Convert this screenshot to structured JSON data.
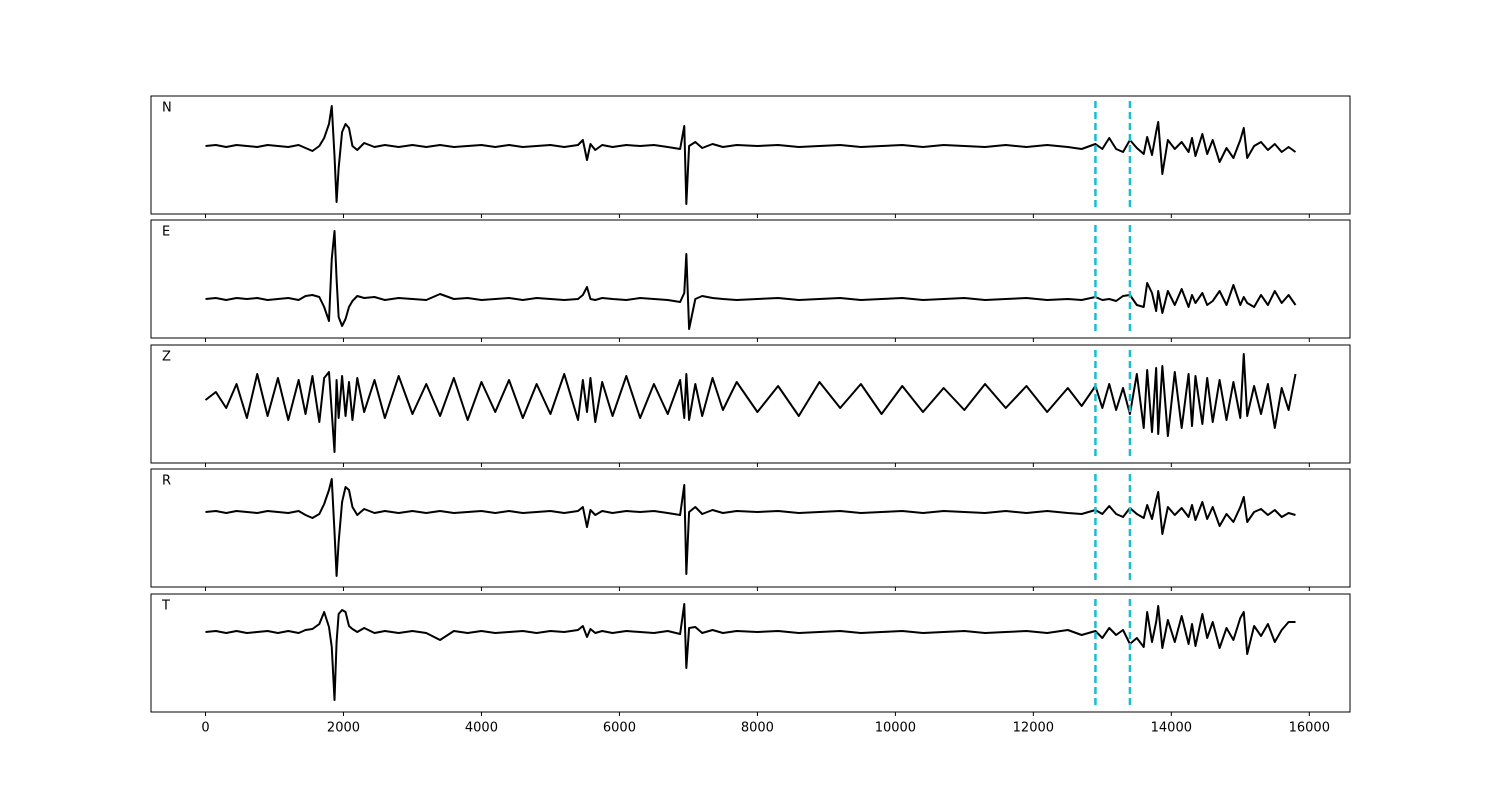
{
  "chart_data": {
    "type": "line",
    "xlim": [
      -790,
      16590
    ],
    "xticks": [
      0,
      2000,
      4000,
      6000,
      8000,
      10000,
      12000,
      14000,
      16000
    ],
    "line_color": "#000000",
    "vlines": {
      "x": [
        12900,
        13400
      ],
      "color": "#17becf"
    },
    "x": [
      0,
      150,
      300,
      450,
      600,
      750,
      900,
      1050,
      1200,
      1350,
      1450,
      1550,
      1650,
      1720,
      1790,
      1830,
      1870,
      1900,
      1930,
      1980,
      2030,
      2080,
      2130,
      2200,
      2300,
      2450,
      2600,
      2800,
      3000,
      3200,
      3400,
      3600,
      3800,
      4000,
      4200,
      4400,
      4600,
      4800,
      5000,
      5200,
      5400,
      5470,
      5530,
      5580,
      5650,
      5750,
      5900,
      6100,
      6300,
      6500,
      6700,
      6880,
      6940,
      6970,
      7010,
      7100,
      7200,
      7350,
      7500,
      7700,
      8000,
      8300,
      8600,
      8900,
      9200,
      9500,
      9800,
      10100,
      10400,
      10700,
      11000,
      11300,
      11600,
      11900,
      12200,
      12500,
      12700,
      12900,
      13000,
      13100,
      13200,
      13300,
      13400,
      13500,
      13600,
      13650,
      13720,
      13780,
      13810,
      13870,
      13950,
      14050,
      14150,
      14250,
      14300,
      14350,
      14450,
      14520,
      14600,
      14700,
      14800,
      14900,
      15000,
      15050,
      15100,
      15200,
      15300,
      15400,
      15500,
      15600,
      15700,
      15800
    ],
    "series": [
      {
        "name": "N",
        "ylim": [
          -68,
          50
        ],
        "values": [
          0,
          1,
          -1,
          1,
          0,
          -1,
          1,
          0,
          -1,
          1,
          -2,
          -5,
          0,
          8,
          22,
          40,
          -10,
          -56,
          -22,
          14,
          22,
          18,
          0,
          -4,
          3,
          -1,
          1,
          -1,
          1,
          -1,
          1,
          -1,
          0,
          1,
          -1,
          1,
          -1,
          0,
          1,
          -1,
          1,
          6,
          -14,
          2,
          -4,
          1,
          -1,
          1,
          0,
          1,
          -1,
          -3,
          20,
          -58,
          0,
          4,
          -2,
          2,
          -1,
          1,
          0,
          1,
          -1,
          0,
          1,
          -1,
          0,
          1,
          -1,
          1,
          0,
          -1,
          1,
          -1,
          1,
          -1,
          -3,
          2,
          -3,
          8,
          -3,
          -6,
          6,
          -2,
          -8,
          9,
          -9,
          14,
          24,
          -28,
          6,
          -3,
          4,
          -6,
          8,
          -10,
          12,
          -8,
          6,
          -16,
          -2,
          -12,
          6,
          18,
          -12,
          0,
          4,
          -4,
          2,
          -6,
          -1,
          -6
        ]
      },
      {
        "name": "E",
        "ylim": [
          -39,
          79
        ],
        "values": [
          0,
          1,
          -1,
          1,
          0,
          1,
          -1,
          0,
          1,
          -1,
          3,
          4,
          2,
          -8,
          -22,
          40,
          68,
          20,
          -18,
          -27,
          -20,
          -8,
          -2,
          3,
          1,
          2,
          -1,
          1,
          0,
          -1,
          5,
          0,
          1,
          -1,
          0,
          1,
          -1,
          1,
          0,
          -1,
          0,
          4,
          12,
          0,
          -1,
          1,
          0,
          -1,
          1,
          0,
          -1,
          -3,
          6,
          45,
          -30,
          0,
          3,
          1,
          0,
          -1,
          0,
          1,
          -1,
          0,
          1,
          -1,
          0,
          1,
          -1,
          0,
          1,
          -1,
          0,
          1,
          -1,
          0,
          -1,
          2,
          -1,
          0,
          -2,
          3,
          4,
          -6,
          -8,
          16,
          6,
          -12,
          8,
          -14,
          8,
          -6,
          10,
          -8,
          4,
          -4,
          6,
          -6,
          -2,
          8,
          -6,
          14,
          -6,
          2,
          -4,
          -8,
          4,
          -6,
          8,
          -4,
          4,
          -6
        ]
      },
      {
        "name": "Z",
        "ylim": [
          -65,
          53
        ],
        "values": [
          -2,
          6,
          -10,
          14,
          -20,
          24,
          -18,
          20,
          -22,
          18,
          -16,
          22,
          -24,
          20,
          26,
          -14,
          -54,
          18,
          -20,
          22,
          -18,
          16,
          -22,
          20,
          -14,
          18,
          -20,
          22,
          -16,
          14,
          -18,
          20,
          -22,
          16,
          -14,
          18,
          -20,
          14,
          -16,
          24,
          -22,
          18,
          -14,
          20,
          -24,
          16,
          -18,
          22,
          -20,
          14,
          -16,
          18,
          -20,
          24,
          -22,
          14,
          -18,
          20,
          -12,
          16,
          -14,
          12,
          -18,
          16,
          -10,
          14,
          -16,
          12,
          -14,
          10,
          -12,
          14,
          -10,
          12,
          -14,
          10,
          -8,
          12,
          -10,
          14,
          -12,
          10,
          -16,
          24,
          -30,
          28,
          -34,
          30,
          -36,
          32,
          -38,
          26,
          -30,
          24,
          -28,
          22,
          -26,
          20,
          -24,
          18,
          -22,
          16,
          -20,
          44,
          -18,
          12,
          -16,
          14,
          -30,
          10,
          -12,
          24
        ]
      },
      {
        "name": "R",
        "ylim": [
          -75,
          43
        ],
        "values": [
          0,
          1,
          -1,
          1,
          0,
          -1,
          1,
          0,
          -1,
          1,
          -3,
          -6,
          -2,
          8,
          22,
          33,
          -20,
          -64,
          -30,
          10,
          25,
          22,
          5,
          -3,
          3,
          -1,
          1,
          -1,
          1,
          -1,
          1,
          -1,
          0,
          1,
          -1,
          1,
          -1,
          0,
          1,
          -1,
          1,
          5,
          -15,
          2,
          -3,
          1,
          -1,
          1,
          0,
          1,
          -1,
          -3,
          27,
          -62,
          0,
          5,
          -2,
          2,
          -1,
          1,
          0,
          1,
          -1,
          0,
          1,
          -1,
          0,
          1,
          -1,
          1,
          0,
          -1,
          1,
          -1,
          1,
          -1,
          -2,
          2,
          -2,
          6,
          -2,
          -5,
          4,
          -2,
          -6,
          7,
          -7,
          12,
          20,
          -22,
          5,
          -3,
          4,
          -5,
          7,
          -8,
          10,
          -7,
          5,
          -14,
          -2,
          -10,
          5,
          15,
          -10,
          0,
          3,
          -3,
          2,
          -5,
          -1,
          -3
        ]
      },
      {
        "name": "T",
        "ylim": [
          -80,
          38
        ],
        "values": [
          0,
          1,
          -1,
          1,
          -1,
          0,
          1,
          -1,
          1,
          -1,
          2,
          3,
          8,
          20,
          5,
          -15,
          -68,
          -10,
          18,
          22,
          20,
          6,
          3,
          0,
          4,
          -1,
          1,
          -1,
          1,
          -1,
          -8,
          1,
          -1,
          1,
          -1,
          0,
          1,
          -1,
          1,
          0,
          2,
          6,
          -5,
          3,
          -1,
          1,
          -1,
          1,
          0,
          -1,
          1,
          -2,
          28,
          -36,
          4,
          5,
          -1,
          2,
          -1,
          1,
          0,
          1,
          -1,
          0,
          1,
          -1,
          0,
          1,
          -1,
          0,
          1,
          -1,
          0,
          1,
          -1,
          2,
          -3,
          1,
          -6,
          4,
          -3,
          2,
          -12,
          -6,
          -15,
          20,
          -10,
          10,
          26,
          -16,
          12,
          -10,
          16,
          -12,
          8,
          -14,
          18,
          -6,
          10,
          -16,
          4,
          -8,
          14,
          20,
          -22,
          6,
          -4,
          8,
          -10,
          2,
          10,
          10
        ]
      }
    ]
  }
}
